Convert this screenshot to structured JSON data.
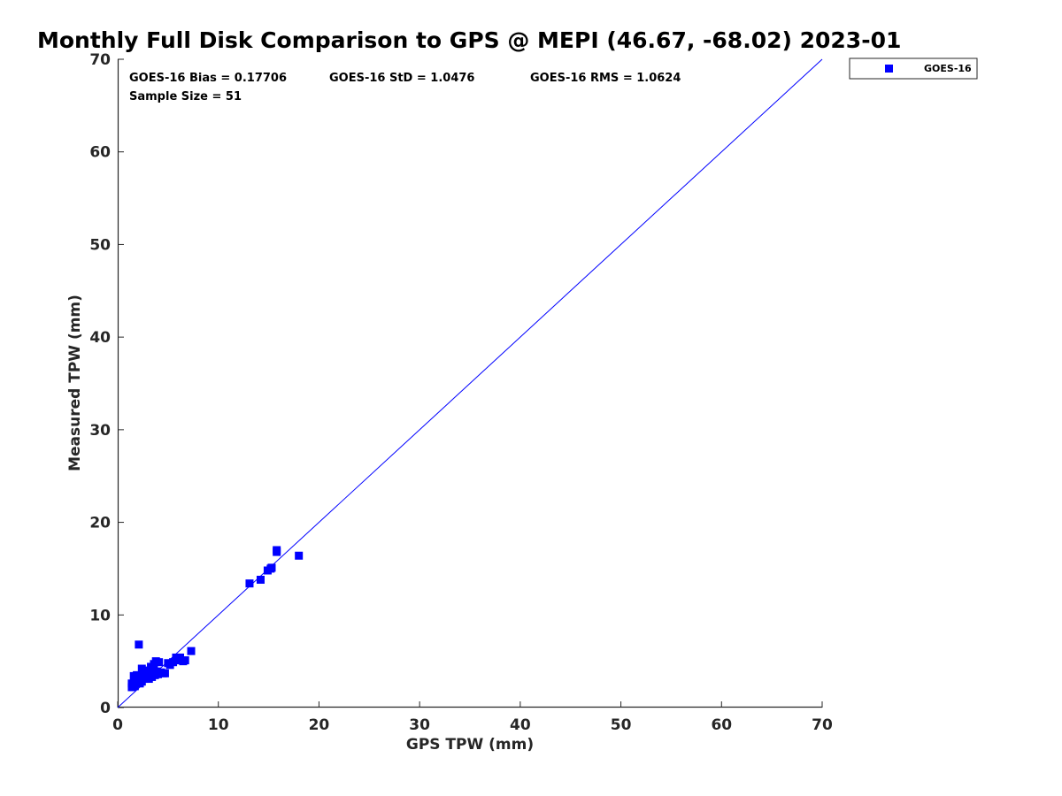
{
  "chart_data": {
    "type": "scatter",
    "title": "Monthly Full Disk Comparison to GPS @ MEPI (46.67, -68.02) 2023-01",
    "xlabel": "GPS TPW (mm)",
    "ylabel": "Measured TPW (mm)",
    "xlim": [
      0,
      70
    ],
    "ylim": [
      0,
      70
    ],
    "x_ticks": [
      "0",
      "10",
      "20",
      "30",
      "40",
      "50",
      "60",
      "70"
    ],
    "y_ticks": [
      "0",
      "10",
      "20",
      "30",
      "40",
      "50",
      "60",
      "70"
    ],
    "grid": false,
    "legend_position": "outside-top-right",
    "stats": {
      "bias": "GOES-16 Bias = 0.17706",
      "std": "GOES-16 StD = 1.0476",
      "rms": "GOES-16 RMS = 1.0624",
      "sample_size": "Sample Size = 51"
    },
    "reference_line": {
      "type": "one-to-one",
      "x": [
        0,
        70
      ],
      "y": [
        0,
        70
      ],
      "color": "#0000ff"
    },
    "series": [
      {
        "name": "GOES-16",
        "color": "#0000ff",
        "marker": "square",
        "points": [
          [
            1.4,
            2.2
          ],
          [
            1.4,
            2.6
          ],
          [
            1.5,
            2.4
          ],
          [
            1.6,
            3.4
          ],
          [
            1.7,
            2.3
          ],
          [
            1.8,
            2.7
          ],
          [
            1.9,
            3.5
          ],
          [
            2.0,
            2.9
          ],
          [
            2.1,
            6.8
          ],
          [
            2.2,
            2.6
          ],
          [
            2.3,
            3.2
          ],
          [
            2.4,
            4.2
          ],
          [
            2.4,
            2.8
          ],
          [
            2.5,
            3.6
          ],
          [
            2.7,
            3.1
          ],
          [
            2.8,
            3.9
          ],
          [
            2.9,
            3.4
          ],
          [
            3.0,
            3.6
          ],
          [
            3.1,
            3.1
          ],
          [
            3.2,
            3.8
          ],
          [
            3.3,
            4.4
          ],
          [
            3.4,
            3.3
          ],
          [
            3.5,
            3.9
          ],
          [
            3.6,
            4.7
          ],
          [
            3.7,
            3.5
          ],
          [
            3.8,
            5.0
          ],
          [
            3.9,
            3.9
          ],
          [
            4.0,
            3.6
          ],
          [
            4.1,
            4.9
          ],
          [
            4.3,
            3.8
          ],
          [
            4.5,
            3.7
          ],
          [
            4.7,
            3.7
          ],
          [
            5.0,
            4.8
          ],
          [
            5.2,
            4.6
          ],
          [
            5.5,
            4.9
          ],
          [
            5.8,
            5.4
          ],
          [
            6.0,
            5.1
          ],
          [
            6.2,
            5.4
          ],
          [
            6.5,
            5.0
          ],
          [
            6.7,
            5.1
          ],
          [
            7.3,
            6.1
          ],
          [
            13.1,
            13.4
          ],
          [
            14.2,
            13.8
          ],
          [
            14.9,
            14.8
          ],
          [
            15.3,
            15.1
          ],
          [
            15.2,
            15.0
          ],
          [
            15.8,
            16.8
          ],
          [
            15.8,
            17.0
          ],
          [
            18.0,
            16.4
          ],
          [
            2.6,
            3.4
          ],
          [
            3.0,
            4.0
          ]
        ]
      }
    ]
  }
}
